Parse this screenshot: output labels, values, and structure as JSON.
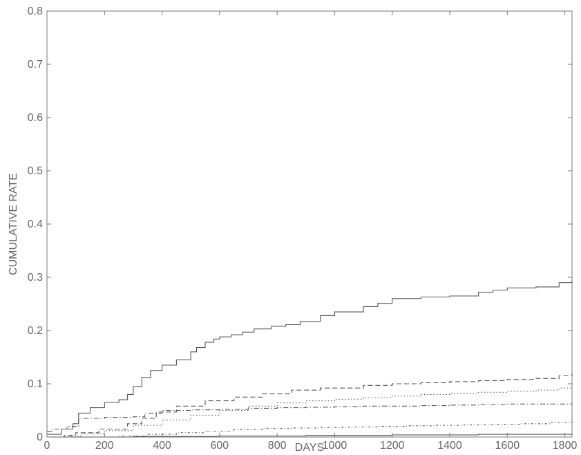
{
  "chart_data": {
    "type": "line",
    "title": "",
    "xlabel": "DAYS",
    "ylabel": "CUMULATIVE RATE",
    "xlim": [
      0,
      1825
    ],
    "ylim": [
      0,
      0.8
    ],
    "xticks": [
      0,
      200,
      400,
      600,
      800,
      1000,
      1200,
      1400,
      1600,
      1800
    ],
    "yticks": [
      0,
      0.1,
      0.2,
      0.3,
      0.4,
      0.5,
      0.6,
      0.7,
      0.8
    ],
    "xtick_labels": [
      "0",
      "200",
      "400",
      "600",
      "800",
      "1000",
      "1200",
      "1400",
      "1600",
      "1800"
    ],
    "ytick_labels": [
      "0",
      "0.1",
      "0.2",
      "0.3",
      "0.4",
      "0.5",
      "0.6",
      "0.7",
      "0.8"
    ],
    "grid": false,
    "legend": "none",
    "series": [
      {
        "style": "solid",
        "x": [
          0,
          50,
          90,
          110,
          150,
          200,
          250,
          280,
          300,
          330,
          360,
          400,
          450,
          500,
          520,
          550,
          580,
          600,
          640,
          680,
          720,
          780,
          830,
          880,
          950,
          1000,
          1100,
          1150,
          1200,
          1300,
          1400,
          1500,
          1550,
          1600,
          1700,
          1780,
          1825
        ],
        "y": [
          0.005,
          0.015,
          0.025,
          0.045,
          0.055,
          0.065,
          0.07,
          0.08,
          0.095,
          0.112,
          0.125,
          0.135,
          0.145,
          0.16,
          0.168,
          0.178,
          0.184,
          0.188,
          0.192,
          0.197,
          0.203,
          0.208,
          0.211,
          0.217,
          0.228,
          0.235,
          0.245,
          0.251,
          0.26,
          0.263,
          0.265,
          0.272,
          0.276,
          0.28,
          0.282,
          0.29,
          0.296
        ]
      },
      {
        "style": "dashed",
        "x": [
          0,
          60,
          100,
          180,
          280,
          330,
          380,
          450,
          550,
          650,
          750,
          850,
          950,
          1100,
          1200,
          1300,
          1400,
          1500,
          1600,
          1700,
          1780,
          1825
        ],
        "y": [
          0,
          0.003,
          0.008,
          0.015,
          0.025,
          0.035,
          0.047,
          0.058,
          0.068,
          0.075,
          0.081,
          0.088,
          0.092,
          0.097,
          0.1,
          0.102,
          0.104,
          0.106,
          0.108,
          0.11,
          0.115,
          0.12
        ]
      },
      {
        "style": "dotted",
        "x": [
          0,
          80,
          120,
          200,
          300,
          400,
          500,
          600,
          700,
          800,
          900,
          1000,
          1100,
          1200,
          1300,
          1400,
          1500,
          1600,
          1700,
          1780,
          1825
        ],
        "y": [
          0,
          0.002,
          0.006,
          0.012,
          0.022,
          0.032,
          0.041,
          0.05,
          0.058,
          0.064,
          0.068,
          0.071,
          0.074,
          0.077,
          0.08,
          0.082,
          0.084,
          0.086,
          0.088,
          0.092,
          0.095
        ]
      },
      {
        "style": "dashdot",
        "x": [
          0,
          20,
          70,
          110,
          200,
          300,
          340,
          400,
          500,
          600,
          700,
          800,
          900,
          1000,
          1100,
          1200,
          1300,
          1400,
          1500,
          1600,
          1700,
          1825
        ],
        "y": [
          0.01,
          0.015,
          0.02,
          0.035,
          0.037,
          0.038,
          0.045,
          0.05,
          0.051,
          0.052,
          0.054,
          0.055,
          0.056,
          0.057,
          0.058,
          0.058,
          0.059,
          0.06,
          0.061,
          0.062,
          0.062,
          0.063
        ]
      },
      {
        "style": "dashdot2",
        "x": [
          0,
          150,
          250,
          350,
          450,
          550,
          650,
          750,
          850,
          950,
          1050,
          1150,
          1250,
          1350,
          1450,
          1550,
          1650,
          1750,
          1825
        ],
        "y": [
          0,
          0,
          0.002,
          0.005,
          0.008,
          0.011,
          0.014,
          0.016,
          0.017,
          0.018,
          0.019,
          0.02,
          0.021,
          0.022,
          0.023,
          0.024,
          0.025,
          0.027,
          0.03
        ]
      },
      {
        "style": "solid",
        "x": [
          0,
          300,
          600,
          900,
          1200,
          1500,
          1825
        ],
        "y": [
          0,
          0.001,
          0.002,
          0.003,
          0.004,
          0.005,
          0.006
        ]
      }
    ]
  }
}
